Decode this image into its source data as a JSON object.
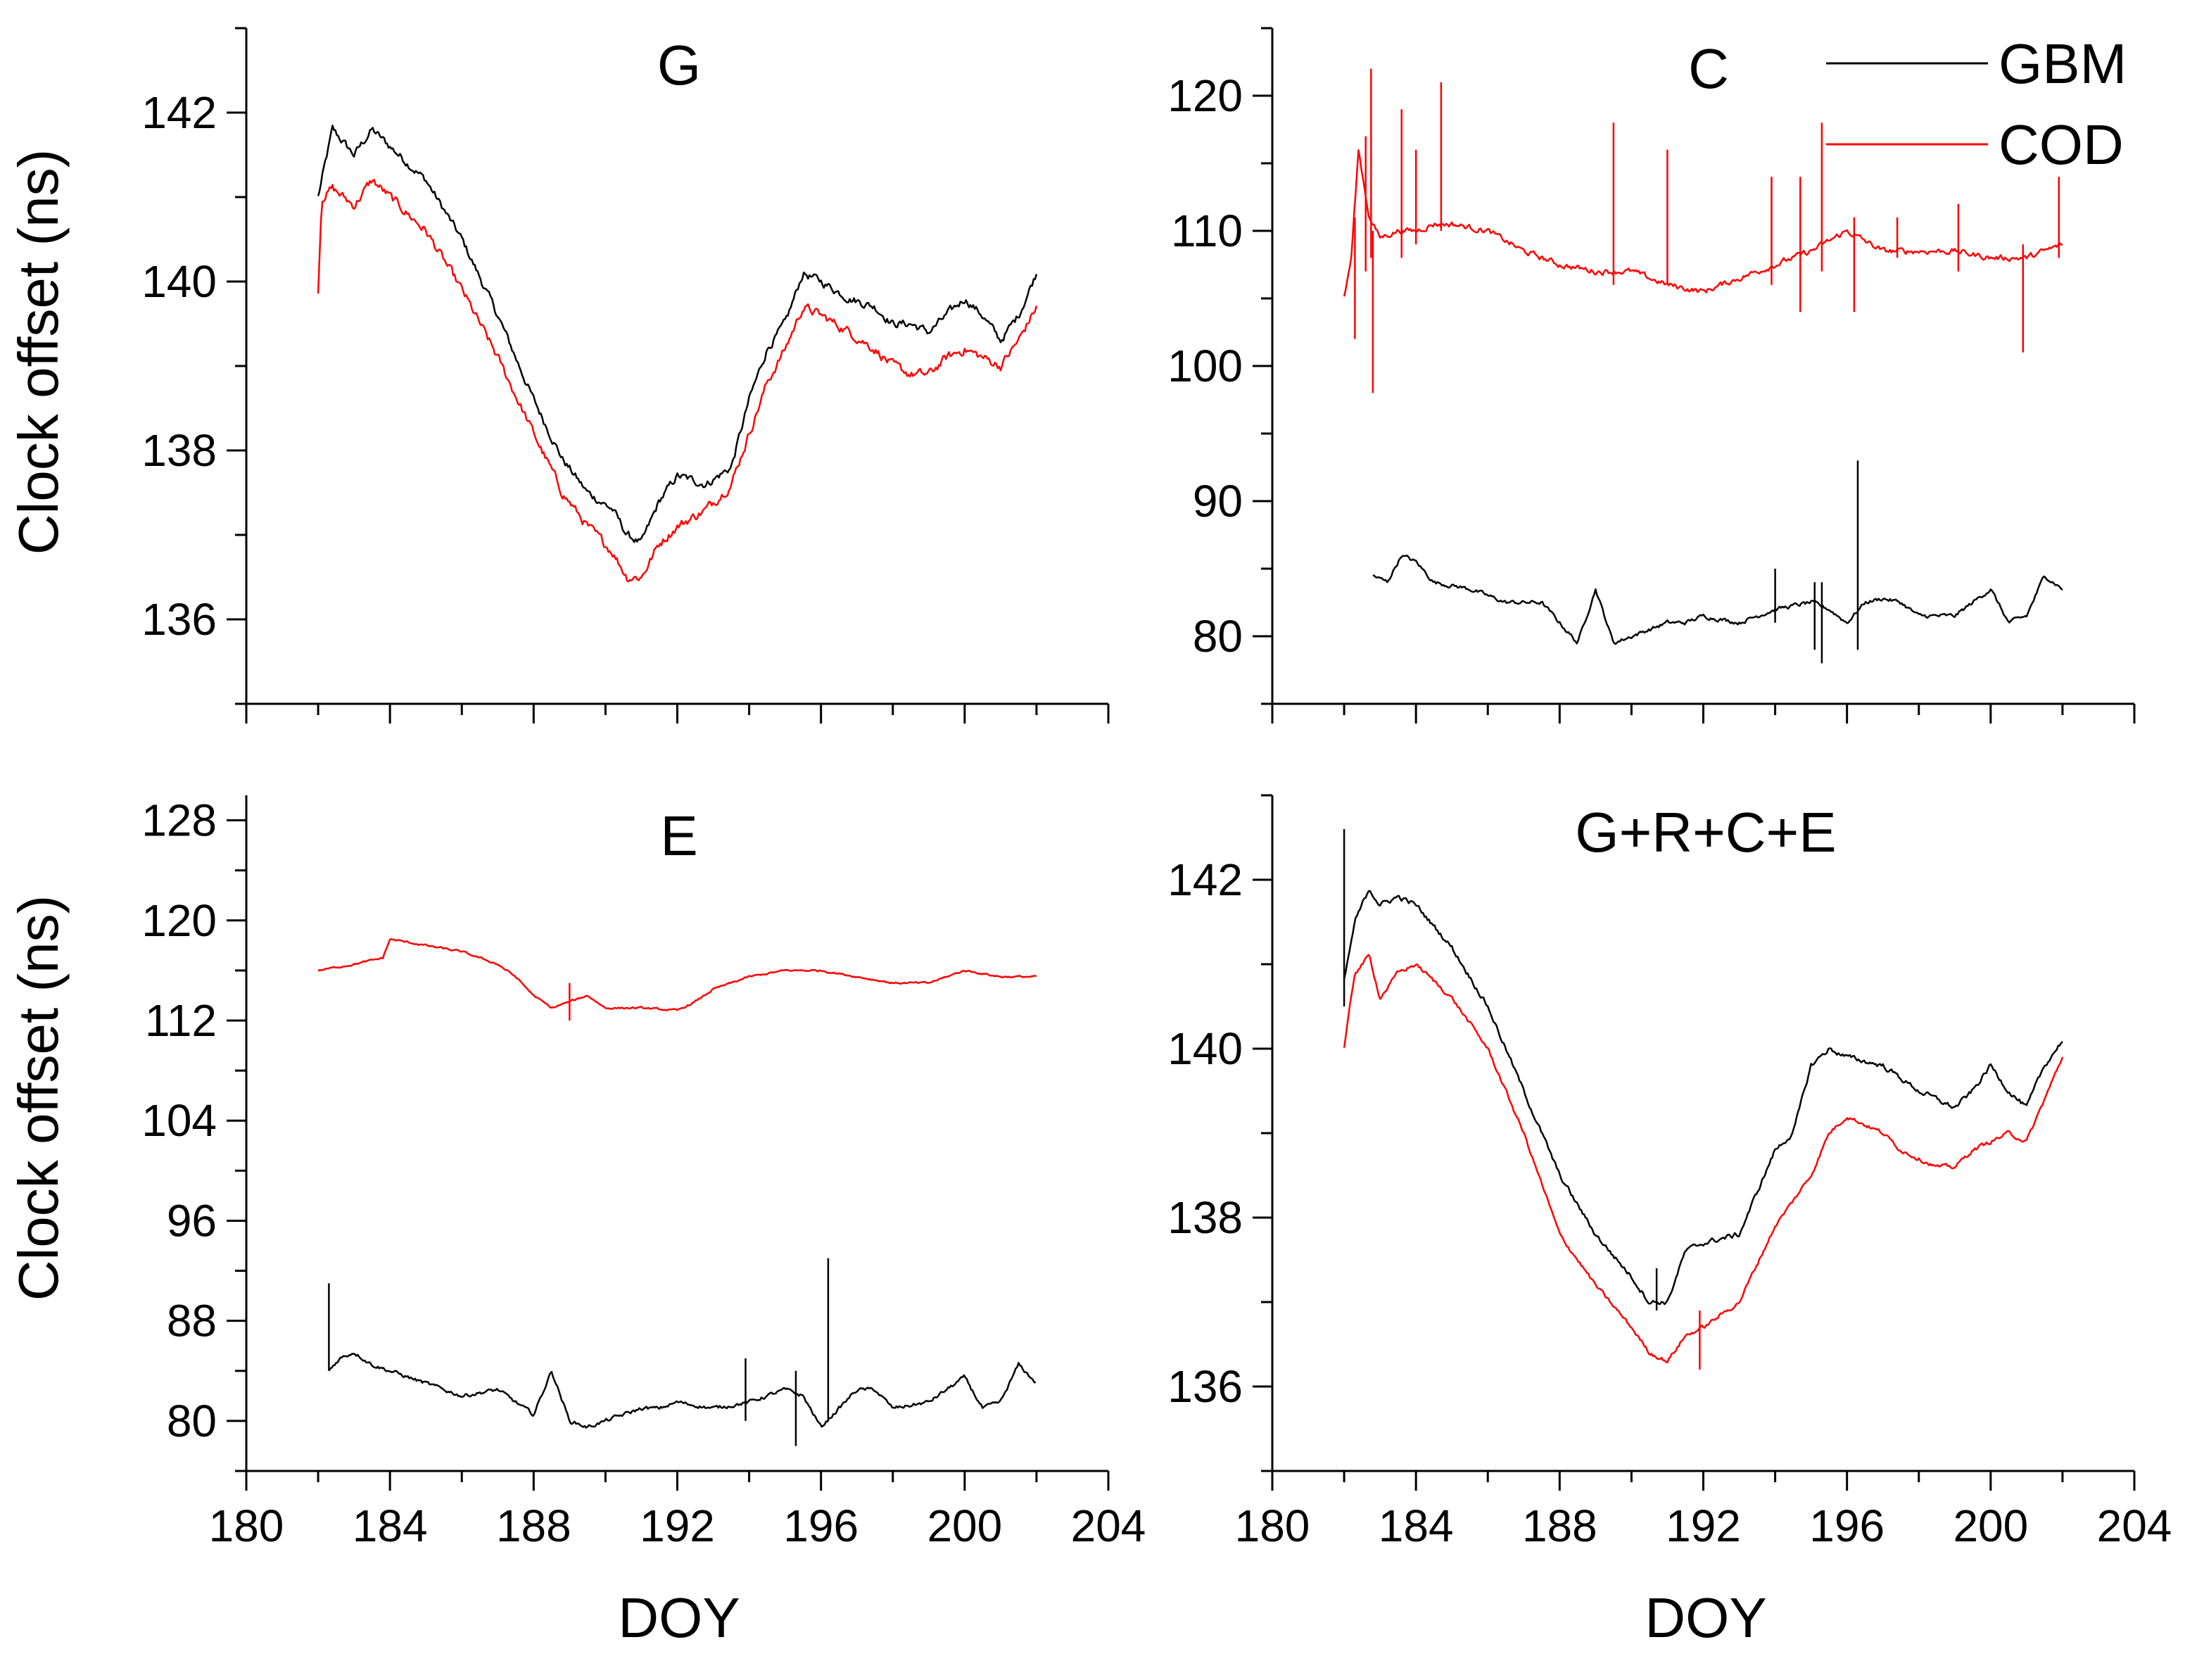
{
  "figure": {
    "legend": [
      {
        "name": "GBM",
        "color": "#000000"
      },
      {
        "name": "COD",
        "color": "#ff0000"
      }
    ],
    "x_axis_title": "DOY",
    "y_axis_title": "Clock offset (ns)"
  },
  "chart_data": [
    {
      "type": "line",
      "title": "G",
      "xlabel": "",
      "ylabel": "Clock offset (ns)",
      "xlim": [
        180,
        204
      ],
      "ylim": [
        135,
        143
      ],
      "x_ticks": [
        180,
        184,
        188,
        192,
        196,
        200,
        204
      ],
      "x_tick_labels": [],
      "y_ticks": [
        136,
        138,
        140,
        142
      ],
      "y_tick_labels": [
        "136",
        "138",
        "140",
        "142"
      ],
      "legend": [],
      "series": [
        {
          "name": "GBM",
          "color": "#000000",
          "noise": 0.08,
          "x": [
            182,
            182.4,
            183,
            183.5,
            184,
            185,
            186,
            187,
            188,
            188.8,
            189.5,
            190.2,
            190.6,
            191,
            191.5,
            192,
            192.8,
            193.5,
            194,
            194.5,
            195,
            195.5,
            196,
            196.8,
            197.5,
            198,
            198.5,
            199,
            199.5,
            200,
            200.5,
            201,
            201.5,
            202
          ],
          "values": [
            141.0,
            141.8,
            141.5,
            141.8,
            141.6,
            141.2,
            140.5,
            139.6,
            138.6,
            137.9,
            137.5,
            137.3,
            137.0,
            136.9,
            137.4,
            137.7,
            137.6,
            137.8,
            138.6,
            139.2,
            139.5,
            140.1,
            140.0,
            139.8,
            139.7,
            139.5,
            139.5,
            139.4,
            139.6,
            139.8,
            139.6,
            139.3,
            139.6,
            140.1
          ]
        },
        {
          "name": "COD",
          "color": "#ff0000",
          "noise": 0.09,
          "x": [
            182,
            182.1,
            182.4,
            183,
            183.5,
            184,
            185,
            186,
            187,
            188,
            188.8,
            189.5,
            190.2,
            190.6,
            191,
            191.5,
            192,
            192.8,
            193.5,
            194,
            194.5,
            195,
            195.5,
            196,
            196.8,
            197.5,
            198,
            198.5,
            199,
            199.5,
            200,
            200.5,
            201,
            201.5,
            202
          ],
          "values": [
            139.9,
            141.0,
            141.1,
            140.9,
            141.2,
            141.0,
            140.6,
            139.9,
            139.1,
            138.2,
            137.5,
            137.1,
            136.8,
            136.5,
            136.5,
            136.9,
            137.1,
            137.3,
            137.6,
            138.2,
            138.8,
            139.2,
            139.7,
            139.6,
            139.4,
            139.2,
            139.0,
            138.9,
            138.9,
            139.1,
            139.2,
            139.1,
            139.0,
            139.3,
            139.7
          ]
        }
      ]
    },
    {
      "type": "line",
      "title": "C",
      "xlabel": "",
      "ylabel": "",
      "xlim": [
        180,
        204
      ],
      "ylim": [
        75,
        125
      ],
      "x_ticks": [
        180,
        184,
        188,
        192,
        196,
        200,
        204
      ],
      "x_tick_labels": [],
      "y_ticks": [
        80,
        90,
        100,
        110,
        120
      ],
      "y_tick_labels": [
        "80",
        "90",
        "100",
        "110",
        "120"
      ],
      "legend": [
        "GBM",
        "COD"
      ],
      "series": [
        {
          "name": "GBM",
          "color": "#000000",
          "noise": 0.25,
          "x": [
            182.8,
            183.2,
            183.6,
            184,
            184.5,
            185.5,
            186.5,
            187.5,
            188,
            188.5,
            189,
            189.5,
            190,
            190.5,
            191,
            191.5,
            192,
            193,
            194,
            195,
            195.5,
            196,
            196.5,
            197,
            197.5,
            198,
            199,
            200,
            200.5,
            201,
            201.5,
            202
          ],
          "values": [
            84.5,
            84.0,
            86.0,
            85.5,
            84.0,
            83.5,
            82.5,
            82.5,
            81.0,
            79.5,
            83.5,
            79.5,
            80.0,
            80.5,
            81.0,
            81.0,
            81.5,
            81.0,
            82.0,
            82.5,
            82.0,
            81.0,
            82.5,
            82.8,
            82.5,
            81.5,
            81.5,
            83.5,
            81.0,
            81.5,
            84.5,
            83.5
          ]
        },
        {
          "name": "COD",
          "color": "#ff0000",
          "noise": 0.35,
          "x": [
            182,
            182.2,
            182.4,
            182.7,
            183,
            183.5,
            184,
            184.5,
            185,
            186,
            187,
            188,
            189,
            190,
            191,
            192,
            193,
            194,
            195,
            196,
            197,
            198,
            199,
            200,
            201,
            202
          ],
          "values": [
            105.0,
            108.0,
            116.0,
            111.0,
            109.5,
            110.0,
            110.0,
            110.5,
            110.5,
            110.0,
            108.5,
            107.5,
            107.0,
            107.0,
            106.0,
            105.5,
            106.5,
            107.5,
            108.5,
            110.0,
            108.5,
            108.5,
            108.5,
            108.0,
            108.0,
            109.0
          ]
        }
      ],
      "spikes": [
        {
          "series": "COD",
          "x": 182.3,
          "lo": 102,
          "hi": 111
        },
        {
          "series": "COD",
          "x": 182.6,
          "lo": 107,
          "hi": 117
        },
        {
          "series": "COD",
          "x": 182.75,
          "lo": 108,
          "hi": 122
        },
        {
          "series": "COD",
          "x": 182.8,
          "lo": 98,
          "hi": 110
        },
        {
          "series": "COD",
          "x": 183.6,
          "lo": 108,
          "hi": 119
        },
        {
          "series": "COD",
          "x": 184.0,
          "lo": 109,
          "hi": 116
        },
        {
          "series": "COD",
          "x": 184.7,
          "lo": 110,
          "hi": 121
        },
        {
          "series": "COD",
          "x": 189.5,
          "lo": 106,
          "hi": 118
        },
        {
          "series": "COD",
          "x": 191.0,
          "lo": 106,
          "hi": 116
        },
        {
          "series": "COD",
          "x": 193.9,
          "lo": 106,
          "hi": 114
        },
        {
          "series": "COD",
          "x": 194.7,
          "lo": 104,
          "hi": 114
        },
        {
          "series": "COD",
          "x": 195.3,
          "lo": 107,
          "hi": 118
        },
        {
          "series": "COD",
          "x": 196.2,
          "lo": 104,
          "hi": 111
        },
        {
          "series": "COD",
          "x": 197.4,
          "lo": 108,
          "hi": 111
        },
        {
          "series": "COD",
          "x": 199.1,
          "lo": 107,
          "hi": 112
        },
        {
          "series": "COD",
          "x": 200.9,
          "lo": 101,
          "hi": 109
        },
        {
          "series": "COD",
          "x": 201.9,
          "lo": 108,
          "hi": 114
        },
        {
          "series": "GBM",
          "x": 194.0,
          "lo": 81,
          "hi": 85
        },
        {
          "series": "GBM",
          "x": 195.1,
          "lo": 79,
          "hi": 84
        },
        {
          "series": "GBM",
          "x": 195.3,
          "lo": 78,
          "hi": 84
        },
        {
          "series": "GBM",
          "x": 196.3,
          "lo": 79,
          "hi": 93
        }
      ]
    },
    {
      "type": "line",
      "title": "E",
      "xlabel": "DOY",
      "ylabel": "Clock offset (ns)",
      "xlim": [
        180,
        204
      ],
      "ylim": [
        76,
        130
      ],
      "x_ticks": [
        180,
        184,
        188,
        192,
        196,
        200,
        204
      ],
      "x_tick_labels": [
        "180",
        "184",
        "188",
        "192",
        "196",
        "200",
        "204"
      ],
      "y_ticks": [
        80,
        88,
        96,
        104,
        112,
        120,
        128
      ],
      "y_tick_labels": [
        "80",
        "88",
        "96",
        "104",
        "112",
        "120",
        "128"
      ],
      "legend": [],
      "series": [
        {
          "name": "GBM",
          "color": "#000000",
          "noise": 0.25,
          "x": [
            182.3,
            182.6,
            183,
            183.5,
            184,
            185,
            186,
            187,
            188,
            188.5,
            189,
            189.5,
            190,
            190.5,
            191,
            191.5,
            192,
            193,
            194,
            195,
            195.5,
            196,
            196.5,
            197,
            197.5,
            198,
            199,
            200,
            200.5,
            201,
            201.5,
            202
          ],
          "values": [
            84.0,
            85.0,
            85.5,
            84.5,
            84.0,
            83.0,
            82.0,
            82.5,
            80.5,
            84.0,
            80.0,
            79.5,
            80.0,
            80.5,
            81.0,
            81.0,
            81.5,
            81.0,
            81.5,
            82.5,
            82.0,
            79.5,
            81.0,
            82.5,
            82.5,
            81.0,
            81.5,
            83.5,
            81.0,
            81.5,
            84.5,
            83.0
          ]
        },
        {
          "name": "COD",
          "color": "#ff0000",
          "noise": 0.12,
          "x": [
            182,
            183,
            183.8,
            184,
            185,
            186,
            187,
            187.5,
            188,
            188.5,
            189,
            189.5,
            190,
            191,
            192,
            192.5,
            193,
            194,
            195,
            196,
            197,
            198,
            199,
            200,
            201,
            202
          ],
          "values": [
            116.0,
            116.5,
            117.0,
            118.5,
            118.0,
            117.5,
            116.5,
            115.5,
            114.0,
            113.0,
            113.5,
            114.0,
            113.0,
            113.0,
            112.8,
            113.5,
            114.5,
            115.5,
            116.0,
            116.0,
            115.5,
            115.0,
            115.0,
            116.0,
            115.5,
            115.5
          ]
        }
      ],
      "spikes": [
        {
          "series": "GBM",
          "x": 182.3,
          "lo": 84,
          "hi": 91
        },
        {
          "series": "GBM",
          "x": 193.9,
          "lo": 80,
          "hi": 85
        },
        {
          "series": "GBM",
          "x": 195.3,
          "lo": 78,
          "hi": 84
        },
        {
          "series": "GBM",
          "x": 196.2,
          "lo": 80,
          "hi": 93
        },
        {
          "series": "COD",
          "x": 189.0,
          "lo": 112,
          "hi": 115
        }
      ]
    },
    {
      "type": "line",
      "title": "G+R+C+E",
      "xlabel": "DOY",
      "ylabel": "",
      "xlim": [
        180,
        204
      ],
      "ylim": [
        135,
        143
      ],
      "x_ticks": [
        180,
        184,
        188,
        192,
        196,
        200,
        204
      ],
      "x_tick_labels": [
        "180",
        "184",
        "188",
        "192",
        "196",
        "200",
        "204"
      ],
      "y_ticks": [
        136,
        138,
        140,
        142
      ],
      "y_tick_labels": [
        "136",
        "138",
        "140",
        "142"
      ],
      "legend": [],
      "series": [
        {
          "name": "GBM",
          "color": "#000000",
          "noise": 0.05,
          "x": [
            182,
            182.3,
            182.7,
            183,
            183.5,
            184,
            185,
            186,
            187,
            188,
            189,
            190,
            190.5,
            191,
            191.5,
            192,
            193,
            194,
            194.5,
            195,
            195.5,
            196,
            197,
            198,
            198.5,
            199,
            199.5,
            200,
            200.5,
            201,
            201.5,
            202
          ],
          "values": [
            140.8,
            141.5,
            141.9,
            141.7,
            141.8,
            141.7,
            141.2,
            140.5,
            139.5,
            138.5,
            137.8,
            137.3,
            137.0,
            137.0,
            137.6,
            137.7,
            137.8,
            138.8,
            139.0,
            139.8,
            140.0,
            139.9,
            139.8,
            139.5,
            139.4,
            139.3,
            139.5,
            139.8,
            139.5,
            139.3,
            139.8,
            140.1
          ]
        },
        {
          "name": "COD",
          "color": "#ff0000",
          "noise": 0.04,
          "x": [
            182,
            182.3,
            182.7,
            183,
            183.5,
            184,
            185,
            186,
            187,
            188,
            189,
            190,
            190.5,
            191,
            191.5,
            192,
            193,
            194,
            195,
            195.5,
            196,
            197,
            197.5,
            198,
            198.5,
            199,
            199.5,
            200,
            200.5,
            201,
            201.5,
            202
          ],
          "values": [
            140.0,
            140.9,
            141.1,
            140.6,
            140.9,
            141.0,
            140.6,
            140.0,
            139.0,
            137.8,
            137.2,
            136.7,
            136.4,
            136.3,
            136.6,
            136.7,
            137.0,
            137.9,
            138.5,
            139.0,
            139.2,
            139.0,
            138.8,
            138.7,
            138.6,
            138.6,
            138.8,
            138.9,
            139.0,
            138.9,
            139.4,
            139.9
          ]
        }
      ],
      "spikes": [
        {
          "series": "GBM",
          "x": 182.0,
          "lo": 140.5,
          "hi": 142.6
        },
        {
          "series": "GBM",
          "x": 190.7,
          "lo": 136.9,
          "hi": 137.4
        },
        {
          "series": "COD",
          "x": 191.9,
          "lo": 136.2,
          "hi": 136.9
        }
      ]
    }
  ]
}
